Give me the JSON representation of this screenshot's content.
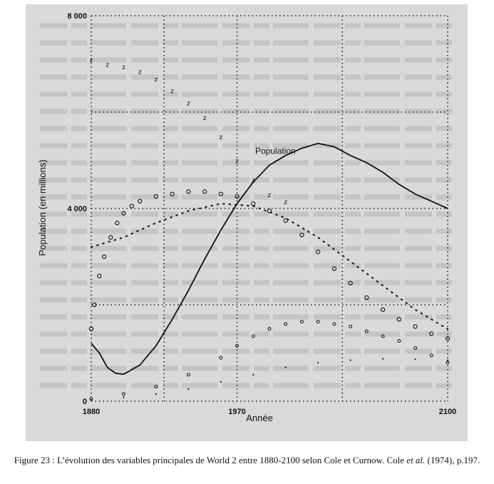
{
  "caption": {
    "prefix": "Figure 23 : L’évolution des variables principales de World 2 entre 1880-2100 selon Cole et Curnow. Cole",
    "etal": "et al.",
    "suffix": "(1974), p.197."
  },
  "chart_data": {
    "type": "line",
    "ylabel": "Population (en millions)",
    "xlabel": "Année",
    "x_ticks": [
      1880,
      1970,
      2100
    ],
    "y_ticks": [
      0,
      4000,
      8000
    ],
    "xlim": [
      1880,
      2100
    ],
    "ylim": [
      0,
      8000
    ],
    "grid": true,
    "series": [
      {
        "name": "Population",
        "style": "solid",
        "x": [
          1880,
          1885,
          1890,
          1895,
          1900,
          1910,
          1920,
          1930,
          1940,
          1950,
          1960,
          1970,
          1980,
          1990,
          2000,
          2010,
          2020,
          2030,
          2040,
          2050,
          2060,
          2070,
          2080,
          2090,
          2100
        ],
        "values": [
          1200,
          1000,
          700,
          580,
          560,
          750,
          1150,
          1700,
          2300,
          2950,
          3550,
          4100,
          4550,
          4900,
          5100,
          5250,
          5350,
          5280,
          5100,
          4950,
          4750,
          4500,
          4300,
          4150,
          4000
        ]
      },
      {
        "name": "",
        "style": "z-markers",
        "x": [
          1880,
          1890,
          1900,
          1910,
          1920,
          1930,
          1940,
          1950,
          1960,
          1970,
          1980,
          1990,
          2000
        ],
        "values": [
          7100,
          7000,
          6950,
          6850,
          6700,
          6450,
          6200,
          5900,
          5500,
          5000,
          4600,
          4300,
          4150
        ]
      },
      {
        "name": "",
        "style": "circle-markers",
        "x": [
          1880,
          1882,
          1885,
          1888,
          1892,
          1896,
          1900,
          1905,
          1910,
          1920,
          1930,
          1940,
          1950,
          1960,
          1970,
          1980,
          1990,
          2000,
          2010,
          2020,
          2030,
          2040,
          2050,
          2060,
          2070,
          2080,
          2090,
          2100
        ],
        "values": [
          1500,
          2000,
          2600,
          3000,
          3400,
          3700,
          3900,
          4050,
          4150,
          4250,
          4300,
          4350,
          4350,
          4300,
          4250,
          4100,
          3950,
          3750,
          3450,
          3100,
          2750,
          2450,
          2150,
          1900,
          1700,
          1550,
          1400,
          1300
        ]
      },
      {
        "name": "",
        "style": "dotted",
        "x": [
          1880,
          1900,
          1920,
          1940,
          1960,
          1980,
          2000,
          2020,
          2040,
          2060,
          2080,
          2100
        ],
        "values": [
          3200,
          3400,
          3700,
          3950,
          4100,
          4050,
          3800,
          3400,
          2900,
          2400,
          1900,
          1500
        ]
      },
      {
        "name": "",
        "style": "small-circle-markers",
        "x": [
          1880,
          1900,
          1920,
          1940,
          1960,
          1970,
          1980,
          1990,
          2000,
          2010,
          2020,
          2030,
          2040,
          2050,
          2060,
          2070,
          2080,
          2090,
          2100
        ],
        "values": [
          50,
          150,
          300,
          550,
          900,
          1150,
          1350,
          1500,
          1600,
          1650,
          1650,
          1600,
          1550,
          1450,
          1350,
          1250,
          1100,
          950,
          800
        ]
      },
      {
        "name": "",
        "style": "tiny-dots",
        "x": [
          1880,
          1900,
          1920,
          1940,
          1960,
          1980,
          2000,
          2020,
          2040,
          2060,
          2080,
          2100
        ],
        "values": [
          30,
          80,
          150,
          250,
          400,
          550,
          700,
          800,
          850,
          880,
          870,
          850
        ]
      }
    ]
  }
}
